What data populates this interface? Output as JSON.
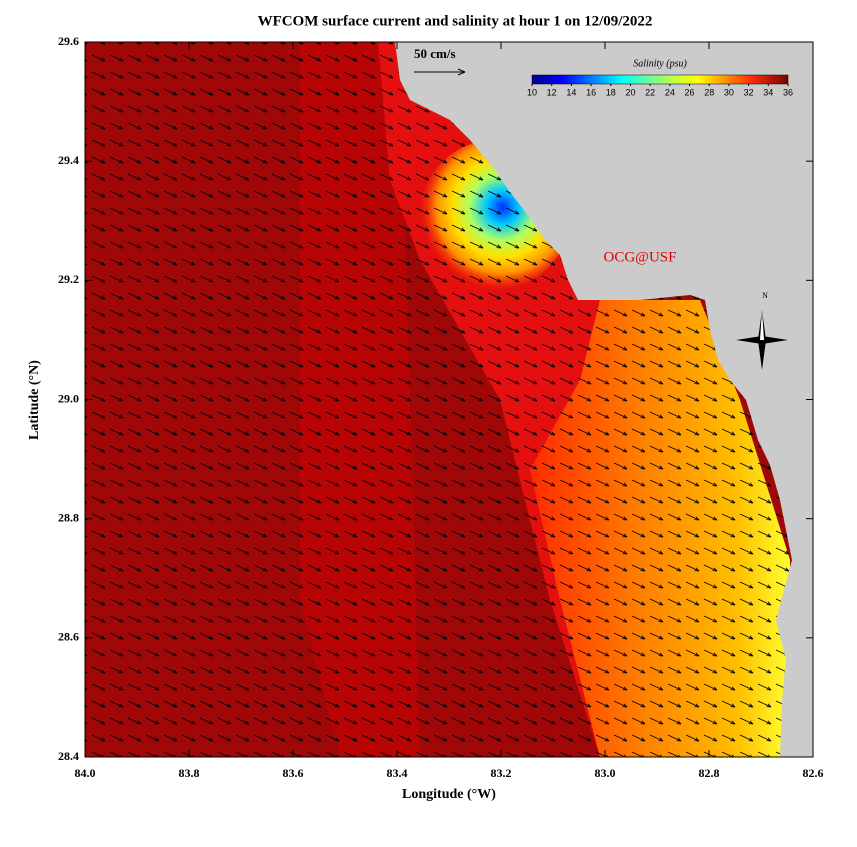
{
  "map": {
    "title": "WFCOM surface current and salinity at hour 1 on 12/09/2022",
    "x_label": "Longitude (°W)",
    "y_label": "Latitude (°N)",
    "xlim": [
      84.0,
      82.6
    ],
    "xticks": [
      {
        "value": 84,
        "label": "84.0"
      },
      83.8,
      83.6,
      83.4,
      83.2,
      {
        "value": 83,
        "label": "83.0"
      },
      82.8,
      82.6
    ],
    "ylim": [
      28.4,
      29.6
    ],
    "yticks": [
      28.4,
      28.6,
      28.8,
      {
        "value": 29,
        "label": "29.0"
      },
      29.2,
      29.4,
      29.6
    ],
    "scale_label": "50 cm/s",
    "colorbar": {
      "label": "Salinity (psu)",
      "lim": [
        10,
        36
      ],
      "ticks": [
        10,
        12,
        14,
        16,
        18,
        20,
        22,
        24,
        26,
        28,
        30,
        32,
        34,
        36
      ]
    },
    "credit": "OCG@USF",
    "compass": "N"
  }
}
